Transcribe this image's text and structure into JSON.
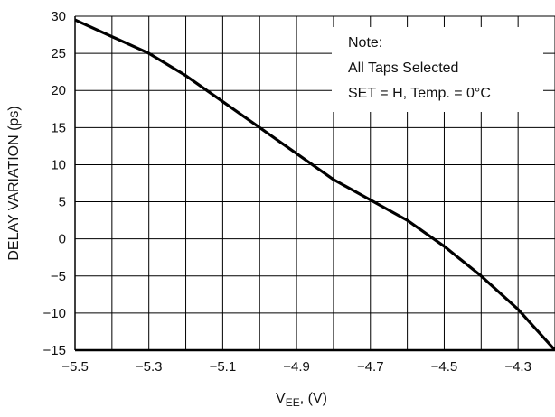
{
  "chart_data": {
    "type": "line",
    "title": "",
    "xlabel": {
      "main": "V",
      "sub": "EE",
      "rest": ", (V)"
    },
    "ylabel": "DELAY VARIATION (ps)",
    "xlim": [
      -5.5,
      -4.2
    ],
    "ylim": [
      -15,
      30
    ],
    "x_ticks": [
      -5.5,
      -5.4,
      -5.3,
      -5.2,
      -5.1,
      -5.0,
      -4.9,
      -4.8,
      -4.7,
      -4.6,
      -4.5,
      -4.4,
      -4.3,
      -4.2
    ],
    "x_tick_labels": [
      "−5.5",
      "−5.3",
      "−5.1",
      "−4.9",
      "−4.7",
      "−4.5",
      "−4.3"
    ],
    "x_tick_label_values": [
      -5.5,
      -5.3,
      -5.1,
      -4.9,
      -4.7,
      -4.5,
      -4.3
    ],
    "y_ticks": [
      -15,
      -10,
      -5,
      0,
      5,
      10,
      15,
      20,
      25,
      30
    ],
    "y_tick_labels": [
      "−15",
      "−10",
      "−5",
      "0",
      "5",
      "10",
      "15",
      "20",
      "25",
      "30"
    ],
    "grid": true,
    "series": [
      {
        "x": [
          -5.5,
          -5.3,
          -5.2,
          -5.0,
          -4.8,
          -4.6,
          -4.5,
          -4.4,
          -4.3,
          -4.2
        ],
        "y": [
          29.5,
          25.0,
          22.0,
          15.0,
          8.0,
          2.5,
          -1.0,
          -5.0,
          -9.5,
          -15.0
        ],
        "color": "#000000"
      }
    ],
    "annotation": {
      "lines": [
        "Note:",
        "All Taps Selected",
        "SET = H, Temp. = 0°C"
      ],
      "placement": "top-right"
    }
  }
}
